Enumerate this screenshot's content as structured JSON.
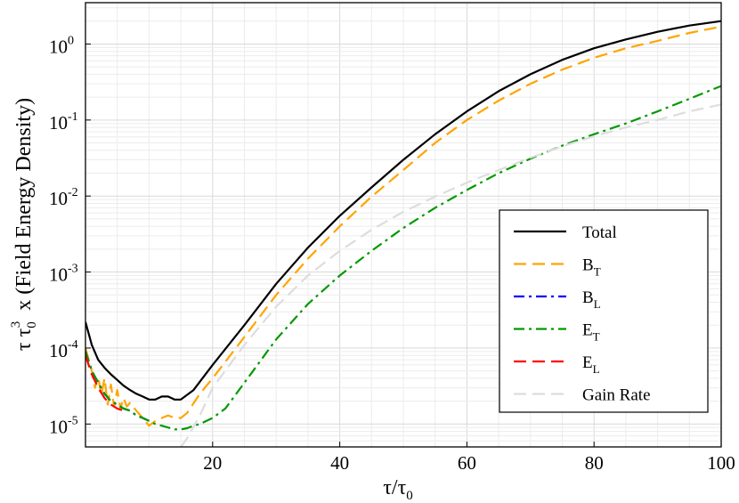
{
  "chart_data": {
    "type": "line",
    "xlabel": "τ/τ",
    "xlabel_sub": "0",
    "ylabel": "τ τ",
    "ylabel_sub": "0",
    "ylabel_sup": "3",
    "ylabel_rest": "x  (Field Energy Density)",
    "x_scale": "linear",
    "y_scale": "log",
    "xlim": [
      0,
      100
    ],
    "ylim": [
      5e-06,
      3.5
    ],
    "grid": true,
    "legend_position": "lower-right",
    "x_ticks": [
      {
        "value": 20,
        "label": "20"
      },
      {
        "value": 40,
        "label": "40"
      },
      {
        "value": 60,
        "label": "60"
      },
      {
        "value": 80,
        "label": "80"
      },
      {
        "value": 100,
        "label": "100"
      }
    ],
    "y_ticks": [
      {
        "value": 1e-05,
        "base": "10",
        "exp": "-5"
      },
      {
        "value": 0.0001,
        "base": "10",
        "exp": "-4"
      },
      {
        "value": 0.001,
        "base": "10",
        "exp": "-3"
      },
      {
        "value": 0.01,
        "base": "10",
        "exp": "-2"
      },
      {
        "value": 0.1,
        "base": "10",
        "exp": "-1"
      },
      {
        "value": 1,
        "base": "10",
        "exp": "0"
      }
    ],
    "series": [
      {
        "name": "Total",
        "subscript": "",
        "color": "#000000",
        "dash": "solid",
        "x": [
          0,
          1,
          2,
          3,
          4,
          5,
          6,
          7,
          8,
          9,
          10,
          11,
          12,
          13,
          14,
          15,
          17,
          20,
          25,
          30,
          35,
          40,
          45,
          50,
          55,
          60,
          65,
          70,
          75,
          80,
          85,
          90,
          95,
          100
        ],
        "y": [
          0.00022,
          0.00011,
          7e-05,
          5.5e-05,
          4.5e-05,
          3.8e-05,
          3.2e-05,
          2.8e-05,
          2.5e-05,
          2.3e-05,
          2.1e-05,
          2.1e-05,
          2.3e-05,
          2.3e-05,
          2.1e-05,
          2.1e-05,
          2.8e-05,
          6e-05,
          0.0002,
          0.0007,
          0.0021,
          0.0055,
          0.013,
          0.03,
          0.065,
          0.13,
          0.24,
          0.4,
          0.62,
          0.88,
          1.15,
          1.45,
          1.75,
          2.0
        ]
      },
      {
        "name": "B",
        "subscript": "T",
        "color": "#FFA500",
        "dash": "dashed",
        "x": [
          0,
          1,
          1.5,
          2,
          2.5,
          3,
          3.5,
          4,
          4.5,
          5,
          5.5,
          6,
          6.5,
          7,
          8,
          9,
          10,
          11,
          12,
          13,
          14,
          15,
          16,
          18,
          20,
          25,
          30,
          35,
          40,
          45,
          50,
          55,
          60,
          65,
          70,
          75,
          80,
          85,
          90,
          95,
          100
        ],
        "y": [
          0.0001,
          5e-05,
          3e-05,
          4.2e-05,
          2.4e-05,
          4e-05,
          1.8e-05,
          3.3e-05,
          1.7e-05,
          2.8e-05,
          1.6e-05,
          2.2e-05,
          1.7e-05,
          1.9e-05,
          1.5e-05,
          1.2e-05,
          9.5e-06,
          1.1e-05,
          1.2e-05,
          1.3e-05,
          1.2e-05,
          1.2e-05,
          1.4e-05,
          2.5e-05,
          4e-05,
          0.00014,
          0.0005,
          0.0015,
          0.004,
          0.0098,
          0.022,
          0.05,
          0.1,
          0.18,
          0.3,
          0.46,
          0.66,
          0.88,
          1.1,
          1.4,
          1.7
        ]
      },
      {
        "name": "B",
        "subscript": "L",
        "color": "#0000FF",
        "dash": "dashdot",
        "x": [
          0,
          1,
          2,
          3,
          4,
          5,
          6,
          7,
          8,
          9,
          10
        ],
        "y": [
          9e-05,
          5e-05,
          3.5e-05,
          2.5e-05,
          2e-05,
          1.8e-05,
          1.6e-05,
          1.5e-05,
          1.3e-05,
          1.2e-05,
          1.1e-05
        ]
      },
      {
        "name": "E",
        "subscript": "T",
        "color": "#009900",
        "dash": "dashdot",
        "x": [
          0,
          1,
          2,
          3,
          4,
          5,
          6,
          7,
          8,
          9,
          10,
          11,
          12,
          13,
          14,
          15,
          16,
          17,
          18,
          20,
          22,
          25,
          30,
          35,
          40,
          45,
          50,
          55,
          60,
          65,
          70,
          75,
          80,
          85,
          90,
          95,
          100
        ],
        "y": [
          9e-05,
          5e-05,
          3.5e-05,
          2.5e-05,
          2e-05,
          1.8e-05,
          1.6e-05,
          1.5e-05,
          1.3e-05,
          1.2e-05,
          1.1e-05,
          1e-05,
          9.5e-06,
          9e-06,
          8.5e-06,
          8.5e-06,
          8.8e-06,
          9.5e-06,
          1e-05,
          1.2e-05,
          1.6e-05,
          3.5e-05,
          0.00013,
          0.00038,
          0.0009,
          0.0019,
          0.0038,
          0.007,
          0.012,
          0.02,
          0.031,
          0.046,
          0.065,
          0.09,
          0.13,
          0.19,
          0.28
        ]
      },
      {
        "name": "E",
        "subscript": "L",
        "color": "#FF0000",
        "dash": "dashed",
        "x": [
          0,
          1,
          2,
          3,
          4,
          5,
          6
        ],
        "y": [
          8e-05,
          4.5e-05,
          3e-05,
          2.2e-05,
          1.8e-05,
          1.6e-05,
          1.5e-05
        ]
      },
      {
        "name": "Gain Rate",
        "subscript": "",
        "color": "#DDDDDD",
        "dash": "dashed",
        "x": [
          15,
          16,
          18,
          20,
          25,
          30,
          35,
          40,
          45,
          50,
          55,
          60,
          65,
          70,
          75,
          80,
          85,
          90,
          95,
          100
        ],
        "y": [
          5e-06,
          6.5e-06,
          1.3e-05,
          3e-05,
          0.00011,
          0.00035,
          0.0009,
          0.0019,
          0.0036,
          0.0062,
          0.0098,
          0.015,
          0.022,
          0.032,
          0.045,
          0.061,
          0.08,
          0.1,
          0.13,
          0.16
        ]
      }
    ]
  }
}
